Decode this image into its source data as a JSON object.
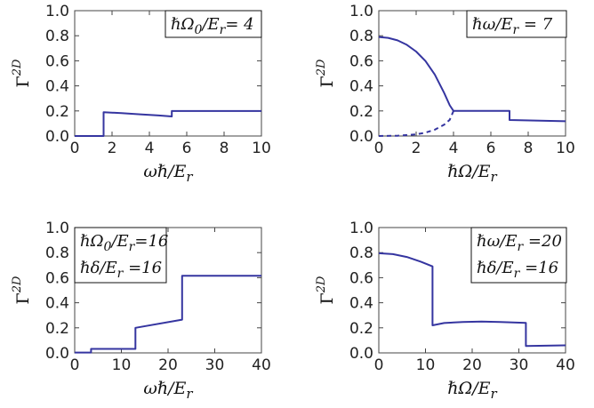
{
  "chart_data": [
    {
      "type": "line",
      "xlabel": "ωℏ/E_r",
      "xlabel_parts": [
        "ωℏ/E",
        "r"
      ],
      "ylabel_parts": [
        "Γ",
        "2D"
      ],
      "xlim": [
        0,
        10
      ],
      "ylim": [
        0,
        1.0
      ],
      "xticks": [
        "0",
        "2",
        "4",
        "6",
        "8",
        "10"
      ],
      "yticks": [
        "0.0",
        "0.2",
        "0.4",
        "0.6",
        "0.8",
        "1.0"
      ],
      "annotation_lines": [
        "ℏΩ₀/E_r= 4"
      ],
      "annotation_position": "top-right",
      "series": [
        {
          "style": "solid",
          "x": [
            0,
            1.55,
            1.55,
            2.5,
            3.5,
            4.5,
            5.2,
            5.2,
            7,
            10
          ],
          "y": [
            0,
            0,
            0.19,
            0.182,
            0.173,
            0.164,
            0.156,
            0.199,
            0.199,
            0.199
          ]
        }
      ]
    },
    {
      "type": "line",
      "xlabel": "ℏΩ/E_r",
      "xlabel_parts": [
        "ℏΩ/E",
        "r"
      ],
      "ylabel_parts": [
        "Γ",
        "2D"
      ],
      "xlim": [
        0,
        10
      ],
      "ylim": [
        0,
        1.0
      ],
      "xticks": [
        "0",
        "2",
        "4",
        "6",
        "8",
        "10"
      ],
      "yticks": [
        "0.0",
        "0.2",
        "0.4",
        "0.6",
        "0.8",
        "1.0"
      ],
      "annotation_lines": [
        "ℏω/E_r = 7"
      ],
      "annotation_position": "top-right",
      "series": [
        {
          "style": "solid",
          "x": [
            0,
            0.5,
            1.0,
            1.5,
            2.0,
            2.5,
            3.0,
            3.5,
            3.8,
            4.0,
            4.0,
            5.5,
            7.0,
            7.0,
            10
          ],
          "y": [
            0.79,
            0.783,
            0.763,
            0.728,
            0.674,
            0.598,
            0.49,
            0.343,
            0.245,
            0.2,
            0.2,
            0.2,
            0.2,
            0.128,
            0.118
          ]
        },
        {
          "style": "dashed",
          "x": [
            0,
            1.0,
            2.0,
            2.5,
            3.0,
            3.5,
            3.8,
            4.0
          ],
          "y": [
            0.0,
            0.002,
            0.013,
            0.027,
            0.05,
            0.09,
            0.13,
            0.2
          ]
        }
      ]
    },
    {
      "type": "line",
      "xlabel": "ωℏ/E_r",
      "xlabel_parts": [
        "ωℏ/E",
        "r"
      ],
      "ylabel_parts": [
        "Γ",
        "2D"
      ],
      "xlim": [
        0,
        40
      ],
      "ylim": [
        0,
        1.0
      ],
      "xticks": [
        "0",
        "10",
        "20",
        "30",
        "40"
      ],
      "yticks": [
        "0.0",
        "0.2",
        "0.4",
        "0.6",
        "0.8",
        "1.0"
      ],
      "annotation_lines": [
        "ℏΩ₀/E_r=16",
        "ℏδ/E_r  =16"
      ],
      "annotation_position": "top-left",
      "series": [
        {
          "style": "solid",
          "x": [
            0,
            3.5,
            3.5,
            13,
            13,
            23,
            23,
            40
          ],
          "y": [
            0.003,
            0.003,
            0.032,
            0.032,
            0.2,
            0.265,
            0.615,
            0.615
          ]
        }
      ]
    },
    {
      "type": "line",
      "xlabel": "ℏΩ/E_r",
      "xlabel_parts": [
        "ℏΩ/E",
        "r"
      ],
      "ylabel_parts": [
        "Γ",
        "2D"
      ],
      "xlim": [
        0,
        40
      ],
      "ylim": [
        0,
        1.0
      ],
      "xticks": [
        "0",
        "10",
        "20",
        "30",
        "40"
      ],
      "yticks": [
        "0.0",
        "0.2",
        "0.4",
        "0.6",
        "0.8",
        "1.0"
      ],
      "annotation_lines": [
        "ℏω/E_r =20",
        "ℏδ/E_r  =16"
      ],
      "annotation_position": "top-right",
      "series": [
        {
          "style": "solid",
          "x": [
            0,
            3,
            6,
            9,
            11.5,
            11.5,
            14,
            18,
            22,
            26,
            31.5,
            31.5,
            40
          ],
          "y": [
            0.795,
            0.788,
            0.765,
            0.728,
            0.69,
            0.22,
            0.238,
            0.247,
            0.25,
            0.247,
            0.24,
            0.055,
            0.06
          ]
        }
      ]
    }
  ],
  "colors": {
    "line": "#3535a0",
    "frame": "#444444"
  }
}
